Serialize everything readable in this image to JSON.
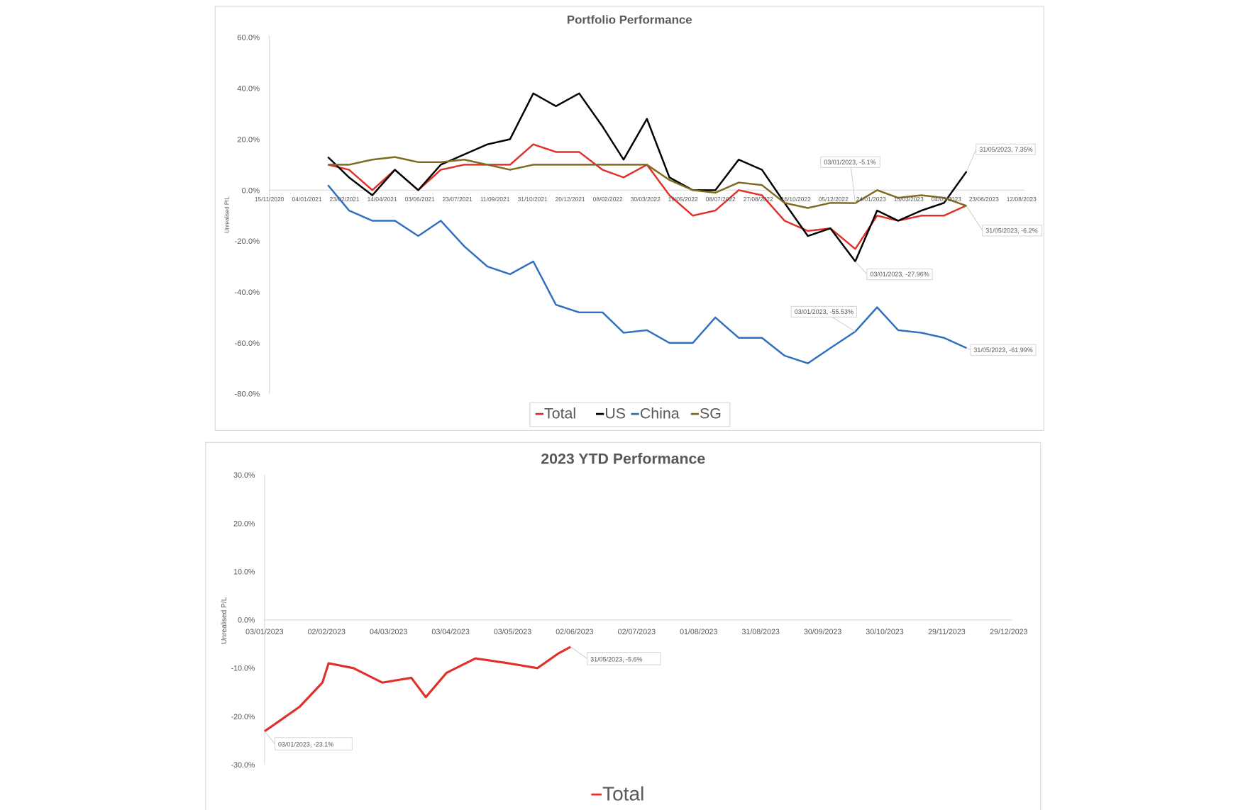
{
  "chart_data": [
    {
      "type": "line",
      "title": "Portfolio Performance",
      "xlabel": "",
      "ylabel": "Unrealised P/L",
      "ylim": [
        -80,
        60
      ],
      "yticks": [
        "60.0%",
        "40.0%",
        "20.0%",
        "0.0%",
        "-20.0%",
        "-40.0%",
        "-60.0%",
        "-80.0%"
      ],
      "ytick_values": [
        60,
        40,
        20,
        0,
        -20,
        -40,
        -60,
        -80
      ],
      "xrange": [
        "15/11/2020",
        "12/08/2023"
      ],
      "xticks": [
        "15/11/2020",
        "04/01/2021",
        "23/02/2021",
        "14/04/2021",
        "03/06/2021",
        "23/07/2021",
        "11/09/2021",
        "31/10/2021",
        "20/12/2021",
        "08/02/2022",
        "30/03/2022",
        "19/05/2022",
        "08/07/2022",
        "27/08/2022",
        "16/10/2022",
        "05/12/2022",
        "24/01/2023",
        "15/03/2023",
        "04/05/2023",
        "23/06/2023",
        "12/08/2023"
      ],
      "x": [
        "01/02/2021",
        "01/03/2021",
        "01/04/2021",
        "01/05/2021",
        "01/06/2021",
        "01/07/2021",
        "01/08/2021",
        "01/09/2021",
        "01/10/2021",
        "01/11/2021",
        "01/12/2021",
        "01/01/2022",
        "01/02/2022",
        "01/03/2022",
        "01/04/2022",
        "01/05/2022",
        "01/06/2022",
        "01/07/2022",
        "01/08/2022",
        "01/09/2022",
        "01/10/2022",
        "01/11/2022",
        "01/12/2022",
        "03/01/2023",
        "01/02/2023",
        "01/03/2023",
        "01/04/2023",
        "01/05/2023",
        "31/05/2023"
      ],
      "series": [
        {
          "name": "Total",
          "color": "#e0302a",
          "values": [
            10,
            8,
            0,
            8,
            0,
            8,
            10,
            10,
            10,
            18,
            15,
            15,
            8,
            5,
            10,
            -2,
            -10,
            -8,
            0,
            -2,
            -12,
            -16,
            -15,
            -23.1,
            -10,
            -12,
            -10,
            -10,
            -6
          ]
        },
        {
          "name": "US",
          "color": "#000000",
          "values": [
            13,
            5,
            -2,
            8,
            0,
            10,
            14,
            18,
            20,
            38,
            33,
            38,
            25,
            12,
            28,
            5,
            0,
            0,
            12,
            8,
            -5,
            -18,
            -15,
            -27.96,
            -8,
            -12,
            -8,
            -5,
            7.35
          ]
        },
        {
          "name": "China",
          "color": "#2f6fbf",
          "values": [
            2,
            -8,
            -12,
            -12,
            -18,
            -12,
            -22,
            -30,
            -33,
            -28,
            -45,
            -48,
            -48,
            -56,
            -55,
            -60,
            -60,
            -50,
            -58,
            -58,
            -65,
            -68,
            -62,
            -55.53,
            -46,
            -55,
            -56,
            -58,
            -61.99
          ]
        },
        {
          "name": "SG",
          "color": "#7f6a1e",
          "values": [
            10,
            10,
            12,
            13,
            11,
            11,
            12,
            10,
            8,
            10,
            10,
            10,
            10,
            10,
            10,
            4,
            0,
            -1,
            3,
            2,
            -5,
            -7,
            -5,
            -5.1,
            0,
            -3,
            -2,
            -3,
            -6.2
          ]
        }
      ],
      "annotations": [
        {
          "series": "SG",
          "x": "03/01/2023",
          "label": "03/01/2023, -5.1%"
        },
        {
          "series": "US",
          "x": "31/05/2023",
          "label": "31/05/2023, 7.35%"
        },
        {
          "series": "SG",
          "x": "31/05/2023",
          "label": "31/05/2023, -6.2%"
        },
        {
          "series": "US",
          "x": "03/01/2023",
          "label": "03/01/2023, -27.96%"
        },
        {
          "series": "China",
          "x": "03/01/2023",
          "label": "03/01/2023, -55.53%"
        },
        {
          "series": "China",
          "x": "31/05/2023",
          "label": "31/05/2023, -61.99%"
        }
      ],
      "legend": "bottom",
      "grid": false
    },
    {
      "type": "line",
      "title": "2023 YTD Performance",
      "xlabel": "",
      "ylabel": "Unrealised P/L",
      "ylim": [
        -30,
        30
      ],
      "yticks": [
        "30.0%",
        "20.0%",
        "10.0%",
        "0.0%",
        "-10.0%",
        "-20.0%",
        "-30.0%"
      ],
      "ytick_values": [
        30,
        20,
        10,
        0,
        -10,
        -20,
        -30
      ],
      "xrange": [
        "03/01/2023",
        "29/12/2023"
      ],
      "xticks": [
        "03/01/2023",
        "02/02/2023",
        "04/03/2023",
        "03/04/2023",
        "03/05/2023",
        "02/06/2023",
        "02/07/2023",
        "01/08/2023",
        "31/08/2023",
        "30/09/2023",
        "30/10/2023",
        "29/11/2023",
        "29/12/2023"
      ],
      "x": [
        "03/01/2023",
        "10/01/2023",
        "20/01/2023",
        "31/01/2023",
        "03/02/2023",
        "15/02/2023",
        "01/03/2023",
        "15/03/2023",
        "22/03/2023",
        "01/04/2023",
        "15/04/2023",
        "01/05/2023",
        "15/05/2023",
        "25/05/2023",
        "31/05/2023"
      ],
      "series": [
        {
          "name": "Total",
          "color": "#e0302a",
          "values": [
            -23.1,
            -21,
            -18,
            -13,
            -9,
            -10,
            -13,
            -12,
            -16,
            -11,
            -8,
            -9,
            -10,
            -7,
            -5.6
          ]
        }
      ],
      "annotations": [
        {
          "series": "Total",
          "x": "31/05/2023",
          "label": "31/05/2023, -5.6%"
        },
        {
          "series": "Total",
          "x": "03/01/2023",
          "label": "03/01/2023, -23.1%"
        }
      ],
      "legend": "bottom",
      "grid": false
    }
  ]
}
